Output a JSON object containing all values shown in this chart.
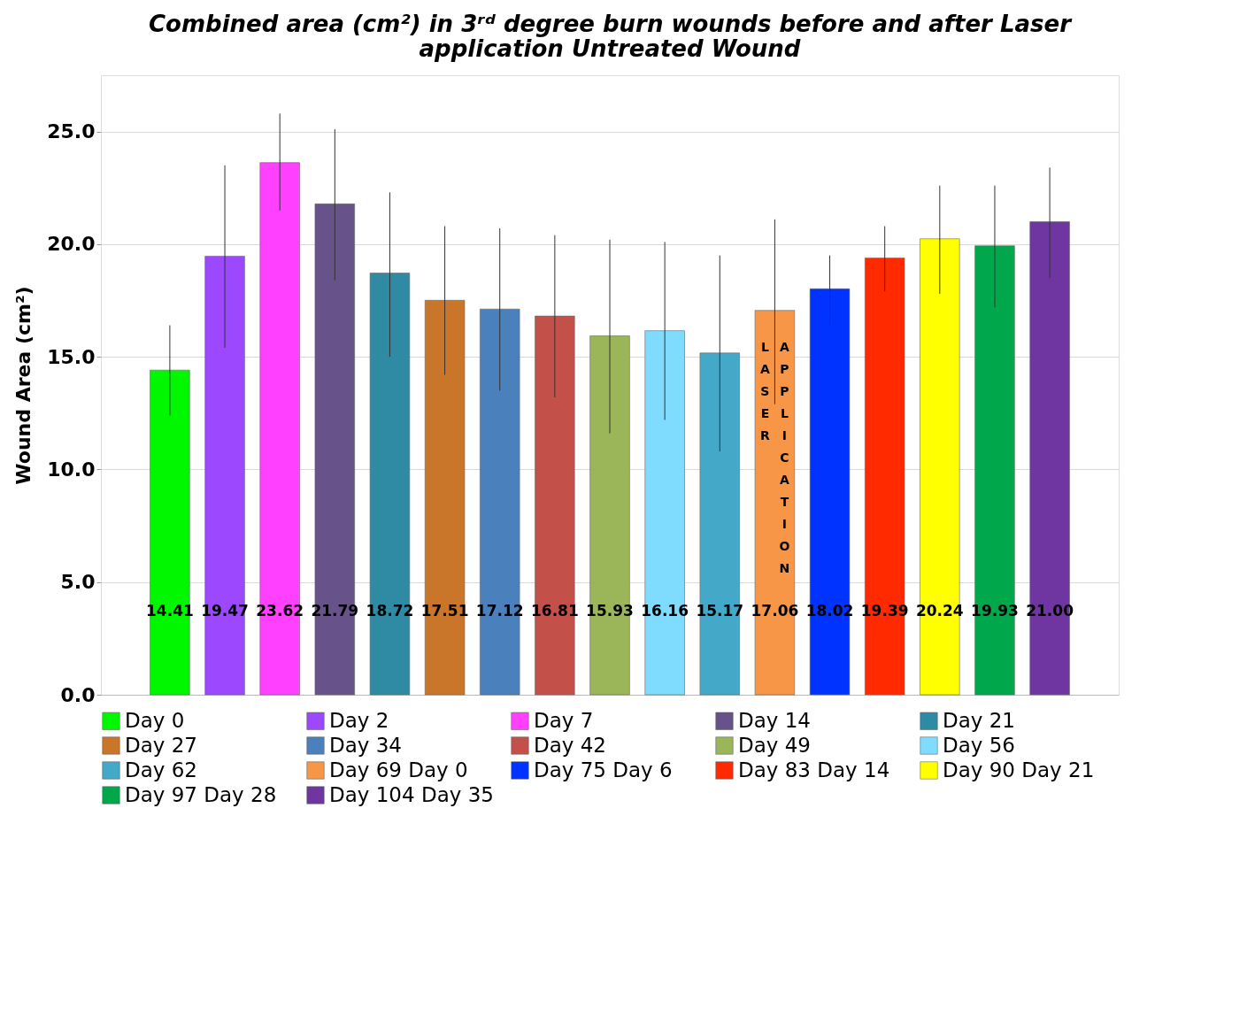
{
  "chart_data": {
    "type": "bar",
    "title": "Combined area (cm²) in 3ʳᵈ degree burn wounds before and after Laser application Untreated Wound",
    "ylabel": "Wound Area  (cm²)",
    "categories": [
      null
    ],
    "series": [
      {
        "name": "Day 0",
        "color": "#00f700",
        "values": [
          14.41
        ],
        "value_labels": [
          "14.41"
        ],
        "errors": [
          [
            12.4,
            16.4
          ]
        ]
      },
      {
        "name": "Day 2",
        "color": "#9b48ff",
        "values": [
          19.47
        ],
        "value_labels": [
          "19.47"
        ],
        "errors": [
          [
            15.4,
            23.5
          ]
        ]
      },
      {
        "name": "Day 7",
        "color": "#ff40ff",
        "values": [
          23.62
        ],
        "value_labels": [
          "23.62"
        ],
        "errors": [
          [
            21.5,
            25.8
          ]
        ]
      },
      {
        "name": "Day 14",
        "color": "#68528a",
        "values": [
          21.79
        ],
        "value_labels": [
          "21.79"
        ],
        "errors": [
          [
            18.4,
            25.1
          ]
        ]
      },
      {
        "name": "Day 21",
        "color": "#2f8aa4",
        "values": [
          18.72
        ],
        "value_labels": [
          "18.72"
        ],
        "errors": [
          [
            15.0,
            22.3
          ]
        ]
      },
      {
        "name": "Day 27",
        "color": "#c9762b",
        "values": [
          17.51
        ],
        "value_labels": [
          "17.51"
        ],
        "errors": [
          [
            14.2,
            20.8
          ]
        ]
      },
      {
        "name": "Day 34",
        "color": "#4a81bd",
        "values": [
          17.12
        ],
        "value_labels": [
          "17.12"
        ],
        "errors": [
          [
            13.5,
            20.7
          ]
        ]
      },
      {
        "name": "Day 42",
        "color": "#c4504a",
        "values": [
          16.81
        ],
        "value_labels": [
          "16.81"
        ],
        "errors": [
          [
            13.2,
            20.4
          ]
        ]
      },
      {
        "name": "Day 49",
        "color": "#9bb658",
        "values": [
          15.93
        ],
        "value_labels": [
          "15.93"
        ],
        "errors": [
          [
            11.6,
            20.2
          ]
        ]
      },
      {
        "name": "Day 56",
        "color": "#80dcff",
        "values": [
          16.16
        ],
        "value_labels": [
          "16.16"
        ],
        "errors": [
          [
            12.2,
            20.1
          ]
        ]
      },
      {
        "name": "Day 62",
        "color": "#44a8c8",
        "values": [
          15.17
        ],
        "value_labels": [
          "15.17"
        ],
        "errors": [
          [
            10.8,
            19.5
          ]
        ]
      },
      {
        "name": "Day 69 Day 0",
        "color": "#f79646",
        "values": [
          17.06
        ],
        "value_labels": [
          "17.06"
        ],
        "errors": [
          [
            12.9,
            21.1
          ]
        ]
      },
      {
        "name": "Day 75 Day 6",
        "color": "#0033ff",
        "values": [
          18.02
        ],
        "value_labels": [
          "18.02"
        ],
        "errors": [
          [
            16.4,
            19.5
          ]
        ]
      },
      {
        "name": "Day 83 Day 14",
        "color": "#ff2a00",
        "values": [
          19.39
        ],
        "value_labels": [
          "19.39"
        ],
        "errors": [
          [
            17.9,
            20.8
          ]
        ]
      },
      {
        "name": "Day 90 Day 21",
        "color": "#ffff00",
        "values": [
          20.24
        ],
        "value_labels": [
          "20.24"
        ],
        "errors": [
          [
            17.8,
            22.6
          ]
        ]
      },
      {
        "name": "Day 97 Day 28",
        "color": "#00a84b",
        "values": [
          19.93
        ],
        "value_labels": [
          "19.93"
        ],
        "errors": [
          [
            17.2,
            22.6
          ]
        ]
      },
      {
        "name": "Day 104 Day 35",
        "color": "#6f35a0",
        "values": [
          21.0
        ],
        "value_labels": [
          "21.00"
        ],
        "errors": [
          [
            18.5,
            23.4
          ]
        ]
      }
    ],
    "annotations": [
      "LASER",
      "APPLICATION"
    ],
    "ylim": [
      0,
      27.5
    ],
    "yticks": [
      {
        "value": 0,
        "label": "0.0"
      },
      {
        "value": 5,
        "label": "5.0"
      },
      {
        "value": 10,
        "label": "10.0"
      },
      {
        "value": 15,
        "label": "15.0"
      },
      {
        "value": 20,
        "label": "20.0"
      },
      {
        "value": 25,
        "label": "25.0"
      }
    ],
    "grid": "y",
    "legend": "bottom",
    "tick_labels": "y"
  }
}
